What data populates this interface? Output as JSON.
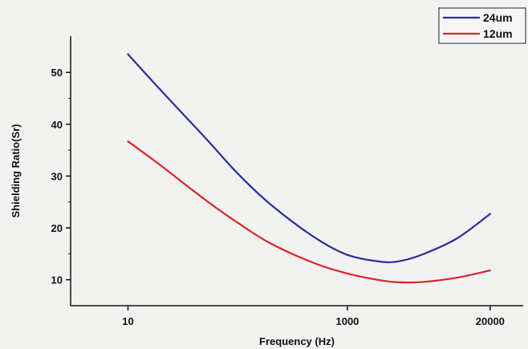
{
  "chart_data": {
    "type": "line",
    "title": "",
    "xlabel": "Frequency (Hz)",
    "ylabel": "Shielding Ratio(Sr)",
    "x_scale": "log",
    "xlim": [
      3,
      40000
    ],
    "ylim": [
      5,
      57
    ],
    "x_ticks": [
      10,
      1000,
      20000
    ],
    "x_tick_labels": [
      "10",
      "1000",
      "20000"
    ],
    "y_ticks": [
      10,
      20,
      30,
      40,
      50
    ],
    "y_tick_labels": [
      "10",
      "20",
      "30",
      "40",
      "50"
    ],
    "grid": false,
    "legend_position": "top-right",
    "series": [
      {
        "name": "24um",
        "color": "#2a2f9a",
        "x": [
          10,
          20,
          50,
          100,
          200,
          500,
          1000,
          2000,
          3000,
          5000,
          10000,
          20000
        ],
        "y": [
          53.5,
          46.5,
          37.5,
          30.5,
          24.5,
          18.2,
          14.8,
          13.5,
          13.6,
          15.0,
          18.0,
          22.7
        ]
      },
      {
        "name": "12um",
        "color": "#d8252a",
        "x": [
          10,
          20,
          50,
          100,
          200,
          500,
          1000,
          2000,
          3000,
          5000,
          10000,
          20000
        ],
        "y": [
          36.7,
          32.0,
          25.5,
          21.0,
          17.0,
          13.2,
          11.2,
          9.9,
          9.5,
          9.6,
          10.4,
          11.8
        ]
      }
    ]
  }
}
